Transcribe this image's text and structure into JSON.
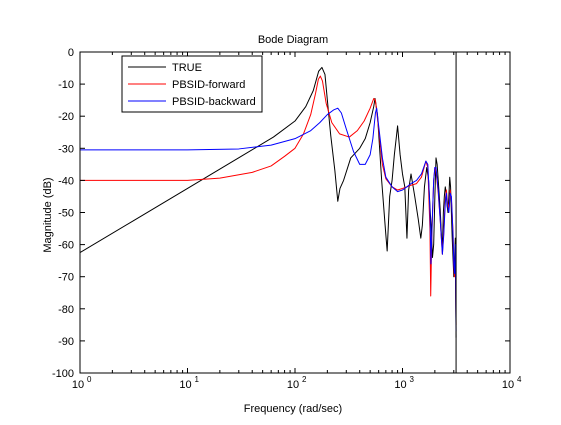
{
  "chart_data": {
    "type": "line",
    "title": "Bode Diagram",
    "xlabel": "Frequency  (rad/sec)",
    "ylabel": "Magnitude (dB)",
    "x_scale": "log",
    "xlim": [
      1,
      10000
    ],
    "ylim": [
      -100,
      0
    ],
    "x_tick_exponents": [
      "0",
      "1",
      "2",
      "3",
      "4"
    ],
    "y_ticks": [
      0,
      -10,
      -20,
      -30,
      -40,
      -50,
      -60,
      -70,
      -80,
      -90,
      -100
    ],
    "grid": false,
    "legend_position": "top-left",
    "vertical_marker_x": 3150,
    "series": [
      {
        "name": "TRUE",
        "color": "#000000",
        "points": [
          [
            1,
            -62.5
          ],
          [
            3.16,
            -52.5
          ],
          [
            10,
            -42.5
          ],
          [
            31.6,
            -32.5
          ],
          [
            63,
            -26.5
          ],
          [
            100,
            -21.5
          ],
          [
            126,
            -17
          ],
          [
            148,
            -12
          ],
          [
            166,
            -6
          ],
          [
            178,
            -4.8
          ],
          [
            190,
            -7
          ],
          [
            200,
            -15
          ],
          [
            215,
            -26
          ],
          [
            235,
            -37
          ],
          [
            250,
            -46.5
          ],
          [
            262,
            -42.5
          ],
          [
            283,
            -40
          ],
          [
            330,
            -33
          ],
          [
            400,
            -30
          ],
          [
            450,
            -27
          ],
          [
            500,
            -22
          ],
          [
            540,
            -17
          ],
          [
            555,
            -14.5
          ],
          [
            585,
            -19.5
          ],
          [
            640,
            -40
          ],
          [
            700,
            -57
          ],
          [
            720,
            -62
          ],
          [
            760,
            -45
          ],
          [
            800,
            -40
          ],
          [
            840,
            -32
          ],
          [
            880,
            -26
          ],
          [
            900,
            -23
          ],
          [
            950,
            -32
          ],
          [
            1000,
            -38
          ],
          [
            1050,
            -42
          ],
          [
            1100,
            -58
          ],
          [
            1140,
            -43
          ],
          [
            1200,
            -38
          ],
          [
            1300,
            -45
          ],
          [
            1400,
            -52
          ],
          [
            1480,
            -58
          ],
          [
            1530,
            -54
          ],
          [
            1600,
            -42
          ],
          [
            1680,
            -36
          ],
          [
            1750,
            -40
          ],
          [
            1800,
            -48
          ],
          [
            1850,
            -55
          ],
          [
            1900,
            -64
          ],
          [
            1950,
            -60
          ],
          [
            2000,
            -45
          ],
          [
            2050,
            -33
          ],
          [
            2100,
            -35
          ],
          [
            2150,
            -40
          ],
          [
            2200,
            -45
          ],
          [
            2250,
            -50
          ],
          [
            2300,
            -57
          ],
          [
            2350,
            -61
          ],
          [
            2400,
            -50
          ],
          [
            2450,
            -45
          ],
          [
            2500,
            -42
          ],
          [
            2550,
            -44
          ],
          [
            2600,
            -48
          ],
          [
            2650,
            -50
          ],
          [
            2700,
            -45
          ],
          [
            2750,
            -39
          ],
          [
            2800,
            -42
          ],
          [
            2900,
            -58
          ],
          [
            3000,
            -70
          ],
          [
            3050,
            -64
          ],
          [
            3100,
            -58
          ],
          [
            3150,
            -89
          ]
        ]
      },
      {
        "name": "PBSID-forward",
        "color": "#ff0000",
        "points": [
          [
            1,
            -40
          ],
          [
            10,
            -40
          ],
          [
            20,
            -39.3
          ],
          [
            40,
            -37.5
          ],
          [
            60,
            -35.5
          ],
          [
            80,
            -32.5
          ],
          [
            100,
            -30
          ],
          [
            120,
            -25.5
          ],
          [
            140,
            -19.5
          ],
          [
            155,
            -13
          ],
          [
            165,
            -8.5
          ],
          [
            172,
            -7.5
          ],
          [
            180,
            -9
          ],
          [
            195,
            -16
          ],
          [
            220,
            -22
          ],
          [
            260,
            -25.5
          ],
          [
            320,
            -26.5
          ],
          [
            380,
            -24.5
          ],
          [
            440,
            -21.5
          ],
          [
            500,
            -17.5
          ],
          [
            540,
            -14.5
          ],
          [
            560,
            -15
          ],
          [
            600,
            -24
          ],
          [
            650,
            -35
          ],
          [
            700,
            -39.5
          ],
          [
            800,
            -42
          ],
          [
            900,
            -43
          ],
          [
            1000,
            -42.5
          ],
          [
            1100,
            -42
          ],
          [
            1200,
            -41.5
          ],
          [
            1350,
            -41
          ],
          [
            1500,
            -39
          ],
          [
            1650,
            -34
          ],
          [
            1720,
            -36
          ],
          [
            1800,
            -55
          ],
          [
            1830,
            -76
          ],
          [
            1870,
            -58
          ],
          [
            1950,
            -40
          ],
          [
            2000,
            -36
          ],
          [
            2050,
            -37
          ],
          [
            2150,
            -44
          ],
          [
            2250,
            -53
          ],
          [
            2350,
            -63
          ],
          [
            2420,
            -56
          ],
          [
            2500,
            -46
          ],
          [
            2560,
            -43
          ],
          [
            2620,
            -47
          ],
          [
            2700,
            -49
          ],
          [
            2780,
            -43
          ],
          [
            2850,
            -46
          ],
          [
            2950,
            -56
          ],
          [
            3000,
            -67
          ],
          [
            3050,
            -70
          ],
          [
            3100,
            -62
          ],
          [
            3150,
            -85
          ]
        ]
      },
      {
        "name": "PBSID-backward",
        "color": "#0000ff",
        "points": [
          [
            1,
            -30.5
          ],
          [
            10,
            -30.5
          ],
          [
            30,
            -30.2
          ],
          [
            60,
            -29
          ],
          [
            100,
            -27
          ],
          [
            140,
            -24.5
          ],
          [
            170,
            -22
          ],
          [
            200,
            -19.5
          ],
          [
            230,
            -18
          ],
          [
            250,
            -17.5
          ],
          [
            270,
            -19
          ],
          [
            300,
            -24
          ],
          [
            350,
            -31
          ],
          [
            400,
            -35
          ],
          [
            450,
            -35
          ],
          [
            500,
            -32
          ],
          [
            530,
            -27
          ],
          [
            560,
            -19
          ],
          [
            575,
            -17.5
          ],
          [
            600,
            -23
          ],
          [
            650,
            -33
          ],
          [
            700,
            -39
          ],
          [
            800,
            -42
          ],
          [
            900,
            -43.5
          ],
          [
            1000,
            -43
          ],
          [
            1100,
            -42
          ],
          [
            1200,
            -41
          ],
          [
            1350,
            -40
          ],
          [
            1500,
            -38
          ],
          [
            1650,
            -34
          ],
          [
            1720,
            -35
          ],
          [
            1800,
            -49
          ],
          [
            1840,
            -66
          ],
          [
            1880,
            -55
          ],
          [
            1950,
            -40
          ],
          [
            2000,
            -36
          ],
          [
            2050,
            -36
          ],
          [
            2150,
            -43
          ],
          [
            2250,
            -53
          ],
          [
            2350,
            -63
          ],
          [
            2420,
            -57
          ],
          [
            2500,
            -47
          ],
          [
            2560,
            -44
          ],
          [
            2620,
            -48
          ],
          [
            2700,
            -50
          ],
          [
            2780,
            -44
          ],
          [
            2850,
            -45
          ],
          [
            2950,
            -57
          ],
          [
            3000,
            -66
          ],
          [
            3050,
            -69
          ],
          [
            3100,
            -60
          ],
          [
            3150,
            -87
          ]
        ]
      }
    ]
  }
}
